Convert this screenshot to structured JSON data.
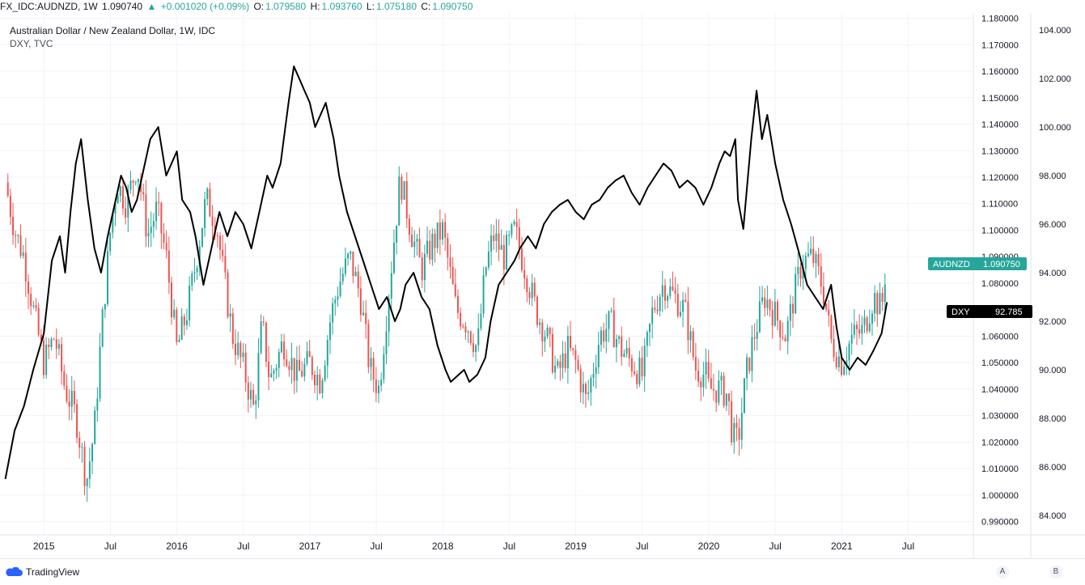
{
  "header": {
    "symbol": "FX_IDC:AUDNZD, 1W",
    "last": "1.090740",
    "change": "+0.001020 (+0.09%)",
    "open_label": "O:",
    "open": "1.079580",
    "high_label": "H:",
    "high": "1.093760",
    "low_label": "L:",
    "low": "1.075180",
    "close_label": "C:",
    "close": "1.090750"
  },
  "legend": {
    "main": "Australian Dollar / New Zealand Dollar, 1W, IDC",
    "overlay": "DXY, TVC"
  },
  "badges": {
    "audnzd_name": "AUDNZD",
    "audnzd_value": "1.090750",
    "dxy_name": "DXY",
    "dxy_value": "92.785"
  },
  "footer": {
    "brand": "TradingView",
    "axis_btn_a": "A",
    "axis_btn_b": "B"
  },
  "colors": {
    "up": "#26a69a",
    "down": "#ef5350",
    "dxy_line": "#000000",
    "grid": "#f0f3fa"
  },
  "chart_data": {
    "type": "line",
    "left_axis_ticks": [
      "1.180000",
      "1.170000",
      "1.160000",
      "1.150000",
      "1.140000",
      "1.130000",
      "1.120000",
      "1.110000",
      "1.100000",
      "1.090000",
      "1.080000",
      "1.070000",
      "1.060000",
      "1.050000",
      "1.040000",
      "1.030000",
      "1.020000",
      "1.010000",
      "1.000000",
      "0.990000"
    ],
    "right_axis_ticks": [
      "104.000",
      "102.000",
      "100.000",
      "98.000",
      "96.000",
      "94.000",
      "92.000",
      "90.000",
      "88.000",
      "86.000",
      "84.000"
    ],
    "x_ticks": [
      "2015",
      "Jul",
      "2016",
      "Jul",
      "2017",
      "Jul",
      "2018",
      "Jul",
      "2019",
      "Jul",
      "2020",
      "Jul",
      "2021",
      "Jul"
    ],
    "audnzd_range": [
      0.985,
      1.182
    ],
    "dxy_range": [
      83.2,
      104.7
    ],
    "series": [
      {
        "name": "AUDNZD",
        "style": "candles",
        "t": [
          2014.71,
          2014.78,
          2014.85,
          2014.92,
          2015.0,
          2015.08,
          2015.16,
          2015.24,
          2015.32,
          2015.38,
          2015.43,
          2015.5,
          2015.55,
          2015.62,
          2015.7,
          2015.78,
          2015.85,
          2015.92,
          2016.0,
          2016.08,
          2016.15,
          2016.22,
          2016.3,
          2016.36,
          2016.42,
          2016.5,
          2016.58,
          2016.64,
          2016.7,
          2016.8,
          2016.9,
          2017.0,
          2017.08,
          2017.16,
          2017.22,
          2017.3,
          2017.38,
          2017.45,
          2017.52,
          2017.6,
          2017.68,
          2017.76,
          2017.84,
          2017.92,
          2018.0,
          2018.1,
          2018.18,
          2018.26,
          2018.32,
          2018.38,
          2018.46,
          2018.54,
          2018.62,
          2018.7,
          2018.78,
          2018.86,
          2018.94,
          2019.0,
          2019.08,
          2019.18,
          2019.26,
          2019.34,
          2019.42,
          2019.5,
          2019.58,
          2019.66,
          2019.74,
          2019.82,
          2019.9,
          2019.98,
          2020.0,
          2020.08,
          2020.14,
          2020.18,
          2020.22,
          2020.28,
          2020.34,
          2020.42,
          2020.5,
          2020.58,
          2020.64,
          2020.7,
          2020.78,
          2020.86,
          2020.92,
          2021.0,
          2021.08,
          2021.16,
          2021.24,
          2021.3,
          2021.34
        ],
        "values": [
          1.118,
          1.1,
          1.09,
          1.07,
          1.05,
          1.06,
          1.04,
          1.03,
          1.005,
          1.025,
          1.06,
          1.1,
          1.118,
          1.11,
          1.125,
          1.098,
          1.108,
          1.09,
          1.055,
          1.07,
          1.09,
          1.112,
          1.102,
          1.08,
          1.06,
          1.048,
          1.032,
          1.065,
          1.043,
          1.058,
          1.045,
          1.05,
          1.043,
          1.068,
          1.08,
          1.09,
          1.075,
          1.048,
          1.04,
          1.08,
          1.12,
          1.1,
          1.085,
          1.095,
          1.1,
          1.07,
          1.065,
          1.055,
          1.085,
          1.098,
          1.09,
          1.1,
          1.085,
          1.07,
          1.06,
          1.045,
          1.055,
          1.05,
          1.035,
          1.06,
          1.065,
          1.055,
          1.05,
          1.045,
          1.07,
          1.08,
          1.075,
          1.07,
          1.048,
          1.045,
          1.04,
          1.04,
          1.038,
          1.022,
          1.02,
          1.045,
          1.06,
          1.075,
          1.068,
          1.06,
          1.075,
          1.088,
          1.09,
          1.078,
          1.058,
          1.05,
          1.06,
          1.062,
          1.075,
          1.07,
          1.09075
        ]
      },
      {
        "name": "DXY",
        "style": "line",
        "t": [
          2014.71,
          2014.78,
          2014.85,
          2014.92,
          2015.0,
          2015.06,
          2015.12,
          2015.16,
          2015.2,
          2015.24,
          2015.28,
          2015.33,
          2015.38,
          2015.43,
          2015.48,
          2015.52,
          2015.58,
          2015.62,
          2015.66,
          2015.7,
          2015.76,
          2015.8,
          2015.86,
          2015.92,
          2015.96,
          2016.0,
          2016.04,
          2016.1,
          2016.14,
          2016.2,
          2016.26,
          2016.32,
          2016.38,
          2016.44,
          2016.5,
          2016.56,
          2016.62,
          2016.68,
          2016.72,
          2016.78,
          2016.84,
          2016.88,
          2016.92,
          2016.96,
          2017.0,
          2017.04,
          2017.08,
          2017.12,
          2017.18,
          2017.22,
          2017.28,
          2017.34,
          2017.4,
          2017.46,
          2017.52,
          2017.58,
          2017.64,
          2017.68,
          2017.72,
          2017.78,
          2017.84,
          2017.9,
          2017.96,
          2018.02,
          2018.06,
          2018.12,
          2018.16,
          2018.2,
          2018.26,
          2018.32,
          2018.36,
          2018.42,
          2018.48,
          2018.54,
          2018.58,
          2018.64,
          2018.7,
          2018.76,
          2018.82,
          2018.88,
          2018.94,
          2019.0,
          2019.06,
          2019.12,
          2019.18,
          2019.24,
          2019.3,
          2019.36,
          2019.42,
          2019.48,
          2019.54,
          2019.6,
          2019.66,
          2019.72,
          2019.78,
          2019.84,
          2019.9,
          2019.96,
          2020.02,
          2020.08,
          2020.12,
          2020.16,
          2020.2,
          2020.22,
          2020.26,
          2020.32,
          2020.36,
          2020.4,
          2020.44,
          2020.5,
          2020.56,
          2020.62,
          2020.68,
          2020.74,
          2020.8,
          2020.86,
          2020.92,
          2020.96,
          2021.0,
          2021.06,
          2021.12,
          2021.18,
          2021.24,
          2021.3,
          2021.34
        ],
        "values": [
          85.5,
          87.5,
          88.5,
          90.0,
          91.5,
          94.5,
          95.5,
          94.0,
          96.5,
          98.5,
          99.5,
          97.0,
          95.0,
          94.0,
          95.5,
          96.5,
          98.0,
          97.5,
          96.5,
          97.0,
          98.5,
          99.5,
          100.0,
          98.0,
          98.5,
          99.0,
          97.0,
          96.5,
          95.5,
          93.5,
          95.0,
          96.5,
          95.5,
          96.5,
          96.0,
          95.0,
          96.5,
          98.0,
          97.5,
          98.5,
          101.0,
          102.5,
          102.0,
          101.5,
          101.0,
          100.0,
          100.5,
          101.0,
          99.5,
          98.0,
          96.5,
          95.5,
          94.5,
          93.5,
          92.5,
          93.0,
          92.0,
          92.5,
          93.5,
          94.0,
          93.0,
          92.5,
          91.0,
          90.0,
          89.5,
          89.8,
          90.0,
          89.5,
          89.8,
          90.5,
          92.0,
          93.5,
          94.0,
          94.5,
          95.0,
          95.5,
          95.0,
          96.0,
          96.5,
          96.8,
          97.0,
          96.5,
          96.2,
          96.8,
          97.0,
          97.5,
          97.8,
          98.0,
          97.3,
          96.8,
          97.5,
          98.0,
          98.5,
          98.2,
          97.5,
          97.8,
          97.5,
          96.8,
          97.5,
          98.5,
          99.0,
          98.8,
          99.5,
          97.0,
          95.8,
          99.5,
          101.5,
          99.5,
          100.5,
          98.5,
          97.0,
          96.0,
          94.8,
          93.5,
          93.0,
          92.5,
          93.5,
          91.8,
          90.5,
          90.0,
          90.5,
          90.2,
          90.8,
          91.5,
          92.785
        ]
      }
    ]
  }
}
